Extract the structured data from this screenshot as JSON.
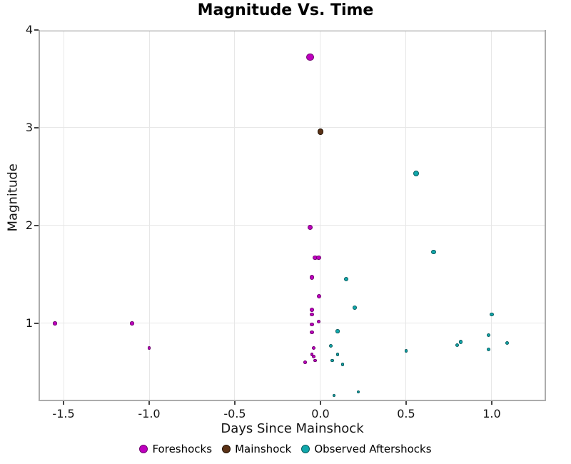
{
  "title": "Magnitude Vs. Time",
  "axes": {
    "xlabel": "Days Since Mainshock",
    "ylabel": "Magnitude",
    "x_tick_labels": [
      "-1.5",
      "-1.0",
      "-0.5",
      "0.0",
      "0.5",
      "1.0"
    ],
    "x_tick_values": [
      -1.5,
      -1.0,
      -0.5,
      0.0,
      0.5,
      1.0
    ],
    "y_tick_labels": [
      "1",
      "2",
      "3",
      "4"
    ],
    "y_tick_values": [
      1,
      2,
      3,
      4
    ]
  },
  "colors": {
    "Foreshocks": {
      "fill": "#bf00bf",
      "edge": "#6e006e"
    },
    "Mainshock": {
      "fill": "#5c3317",
      "edge": "#201003"
    },
    "Observed Aftershocks": {
      "fill": "#11a8ac",
      "edge": "#0a5c5e"
    },
    "grid": "#e7e7e7",
    "spine": "#acacac",
    "tick": "#444444"
  },
  "legend": {
    "items": [
      {
        "label": "Foreshocks",
        "series": "Foreshocks"
      },
      {
        "label": "Mainshock",
        "series": "Mainshock"
      },
      {
        "label": "Observed Aftershocks",
        "series": "Observed Aftershocks"
      }
    ]
  },
  "chart_data": {
    "type": "scatter",
    "title": "Magnitude Vs. Time",
    "xlabel": "Days Since Mainshock",
    "ylabel": "Magnitude",
    "xlim": [
      -1.646,
      1.317
    ],
    "ylim": [
      0.204,
      4.0
    ],
    "grid": true,
    "legend_position": "bottom-center",
    "marker_size_rule": "radius_px = 1.8 + 0.9 * magnitude",
    "series": [
      {
        "name": "Foreshocks",
        "color": "#bf00bf",
        "points": [
          [
            -1.55,
            1.0
          ],
          [
            -1.1,
            1.0
          ],
          [
            -1.0,
            0.75
          ],
          [
            -0.06,
            3.72
          ],
          [
            -0.06,
            1.98
          ],
          [
            -0.03,
            1.67
          ],
          [
            -0.01,
            1.67
          ],
          [
            -0.05,
            1.47
          ],
          [
            -0.01,
            1.28
          ],
          [
            -0.05,
            1.14
          ],
          [
            -0.05,
            1.09
          ],
          [
            -0.01,
            1.02
          ],
          [
            -0.05,
            0.99
          ],
          [
            -0.05,
            0.91
          ],
          [
            -0.04,
            0.75
          ],
          [
            -0.05,
            0.68
          ],
          [
            -0.04,
            0.66
          ],
          [
            -0.03,
            0.62
          ],
          [
            -0.09,
            0.6
          ]
        ]
      },
      {
        "name": "Mainshock",
        "color": "#5c3317",
        "points": [
          [
            0.0,
            2.96
          ]
        ]
      },
      {
        "name": "Observed Aftershocks",
        "color": "#11a8ac",
        "points": [
          [
            0.15,
            1.45
          ],
          [
            0.2,
            1.16
          ],
          [
            0.1,
            0.92
          ],
          [
            0.06,
            0.77
          ],
          [
            0.1,
            0.68
          ],
          [
            0.07,
            0.62
          ],
          [
            0.13,
            0.58
          ],
          [
            0.08,
            0.26
          ],
          [
            0.22,
            0.3
          ],
          [
            0.5,
            0.72
          ],
          [
            0.56,
            2.53
          ],
          [
            0.66,
            1.73
          ],
          [
            0.8,
            0.78
          ],
          [
            0.82,
            0.81
          ],
          [
            0.98,
            0.88
          ],
          [
            0.98,
            0.73
          ],
          [
            1.0,
            1.09
          ],
          [
            1.09,
            0.8
          ]
        ]
      }
    ]
  }
}
